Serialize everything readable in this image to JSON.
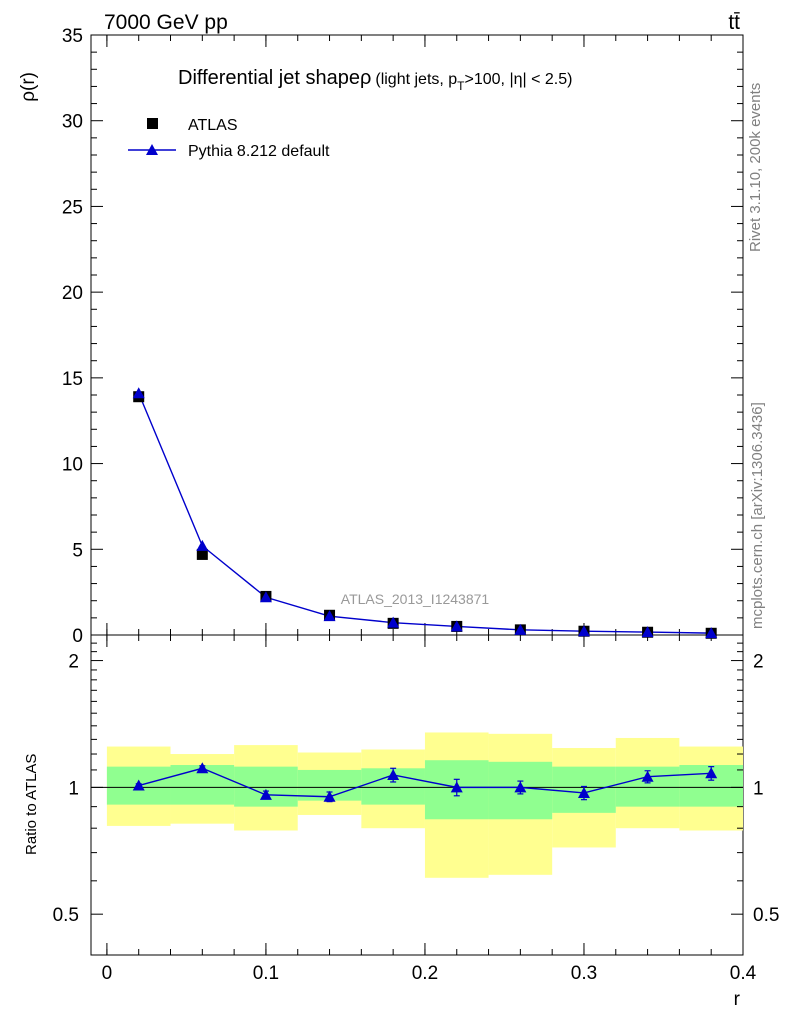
{
  "header": {
    "energy_label": "7000 GeV pp",
    "process_label": "tt̄"
  },
  "side_labels": {
    "rivet": "Rivet 3.1.10,  200k events",
    "mcplots": "mcplots.cern.ch [arXiv:1306.3436]"
  },
  "chart_data": [
    {
      "type": "line",
      "title_main": "Differential jet shape",
      "title_rho": "ρ",
      "title_sub_pre": "(light jets, p",
      "title_sub_sub": "T",
      "title_sub_post": ">100, |η| < 2.5)",
      "ylabel": "ρ(r)",
      "ylim": [
        0,
        35
      ],
      "xlim": [
        -0.01,
        0.4
      ],
      "yticks": [
        0,
        5,
        10,
        15,
        20,
        25,
        30,
        35
      ],
      "watermark": "ATLAS_2013_I1243871",
      "x": [
        0.02,
        0.06,
        0.1,
        0.14,
        0.18,
        0.22,
        0.26,
        0.3,
        0.34,
        0.38
      ],
      "series": [
        {
          "name": "ATLAS",
          "kind": "data",
          "values": [
            13.9,
            4.7,
            2.25,
            1.15,
            0.68,
            0.5,
            0.3,
            0.22,
            0.16,
            0.1
          ]
        },
        {
          "name": "Pythia 8.212 default",
          "kind": "mc",
          "color": "#0000cc",
          "values": [
            14.1,
            5.2,
            2.2,
            1.1,
            0.72,
            0.5,
            0.3,
            0.22,
            0.17,
            0.11
          ]
        }
      ]
    },
    {
      "type": "line",
      "ylabel": "Ratio to ATLAS",
      "xlabel": "r",
      "ylim": [
        0.4,
        2.3
      ],
      "xlim": [
        -0.01,
        0.4
      ],
      "yticks": [
        0.5,
        1,
        2
      ],
      "ytick_labels": [
        "0.5",
        "1",
        "2"
      ],
      "xticks": [
        0,
        0.1,
        0.2,
        0.3,
        0.4
      ],
      "xtick_labels": [
        "0",
        "0.1",
        "0.2",
        "0.3",
        "0.4"
      ],
      "x": [
        0.02,
        0.06,
        0.1,
        0.14,
        0.18,
        0.22,
        0.26,
        0.3,
        0.34,
        0.38
      ],
      "band_edges": [
        0,
        0.04,
        0.08,
        0.12,
        0.16,
        0.2,
        0.24,
        0.28,
        0.32,
        0.36,
        0.4
      ],
      "stat_band": {
        "color": "#90ff90",
        "lo": [
          0.91,
          0.91,
          0.9,
          0.93,
          0.91,
          0.84,
          0.84,
          0.87,
          0.9,
          0.9
        ],
        "hi": [
          1.12,
          1.13,
          1.12,
          1.1,
          1.11,
          1.16,
          1.15,
          1.12,
          1.12,
          1.13
        ]
      },
      "syst_band": {
        "color": "#ffff90",
        "lo": [
          0.81,
          0.82,
          0.79,
          0.86,
          0.8,
          0.61,
          0.62,
          0.72,
          0.8,
          0.79
        ],
        "hi": [
          1.25,
          1.2,
          1.26,
          1.21,
          1.23,
          1.35,
          1.34,
          1.24,
          1.31,
          1.25
        ]
      },
      "series": [
        {
          "name": "Pythia 8.212 default",
          "color": "#0000cc",
          "values": [
            1.01,
            1.11,
            0.96,
            0.95,
            1.07,
            1.0,
            1.0,
            0.97,
            1.06,
            1.08
          ],
          "err": [
            0.01,
            0.015,
            0.02,
            0.025,
            0.04,
            0.045,
            0.035,
            0.035,
            0.035,
            0.04
          ]
        }
      ]
    }
  ]
}
